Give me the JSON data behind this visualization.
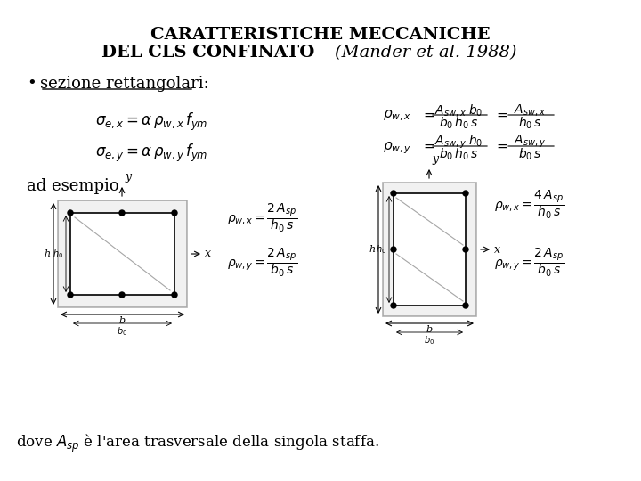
{
  "title_line1": "CARATTERISTICHE MECCANICHE",
  "title_line2": "DEL CLS CONFINATO  ",
  "title_italic": "(Mander et al. 1988)",
  "bullet_text": "sezione rettangolari:",
  "formula1_left": "$\\sigma_{e,x} = \\alpha\\, \\rho_{w,x}\\, f_{ym}$",
  "formula2_left": "$\\sigma_{e,y} = \\alpha\\, \\rho_{w,y}\\, f_{ym}$",
  "formula1_right_num": "$A_{sw,x}\\, b_0$",
  "formula1_right_den": "$b_0\\, h_0\\, s$",
  "formula1_right_eq": "$A_{sw,x}$",
  "formula1_right_den2": "$h_0\\, s$",
  "formula2_right_num": "$A_{sw,y}\\, h_0$",
  "formula2_right_den": "$b_0\\, h_0\\, s$",
  "formula2_right_eq": "$A_{sw,y}$",
  "formula2_right_den2": "$b_0\\, s$",
  "ad_esempio": "ad esempio",
  "footer": "dove $A_{sp}$ \\`e l\\u2019area trasversale della singola staffa.",
  "bg_color": "#ffffff",
  "text_color": "#000000"
}
